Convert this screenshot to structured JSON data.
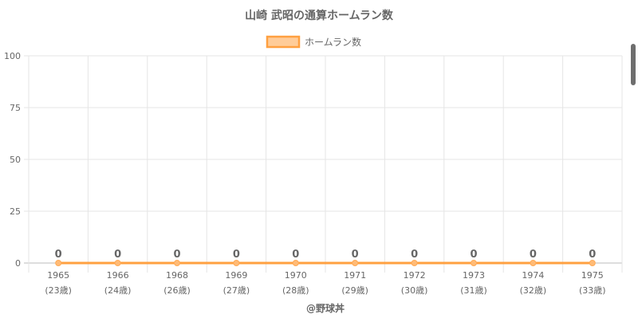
{
  "chart_data": {
    "type": "line",
    "title": "山崎 武昭の通算ホームラン数",
    "categories": [
      "1965",
      "1966",
      "1968",
      "1969",
      "1970",
      "1971",
      "1972",
      "1973",
      "1974",
      "1975"
    ],
    "category_sublabels": [
      "(23歳)",
      "(24歳)",
      "(26歳)",
      "(27歳)",
      "(28歳)",
      "(29歳)",
      "(30歳)",
      "(31歳)",
      "(32歳)",
      "(33歳)"
    ],
    "series": [
      {
        "name": "ホームラン数",
        "values": [
          0,
          0,
          0,
          0,
          0,
          0,
          0,
          0,
          0,
          0
        ],
        "color": "#ffa040",
        "fill": "#ffcc99"
      }
    ],
    "data_labels": [
      "0",
      "0",
      "0",
      "0",
      "0",
      "0",
      "0",
      "0",
      "0",
      "0"
    ],
    "ylim": [
      0,
      100
    ],
    "yticks": [
      "0",
      "25",
      "50",
      "75",
      "100"
    ],
    "grid": true,
    "legend": "top"
  },
  "credit": "@野球丼"
}
